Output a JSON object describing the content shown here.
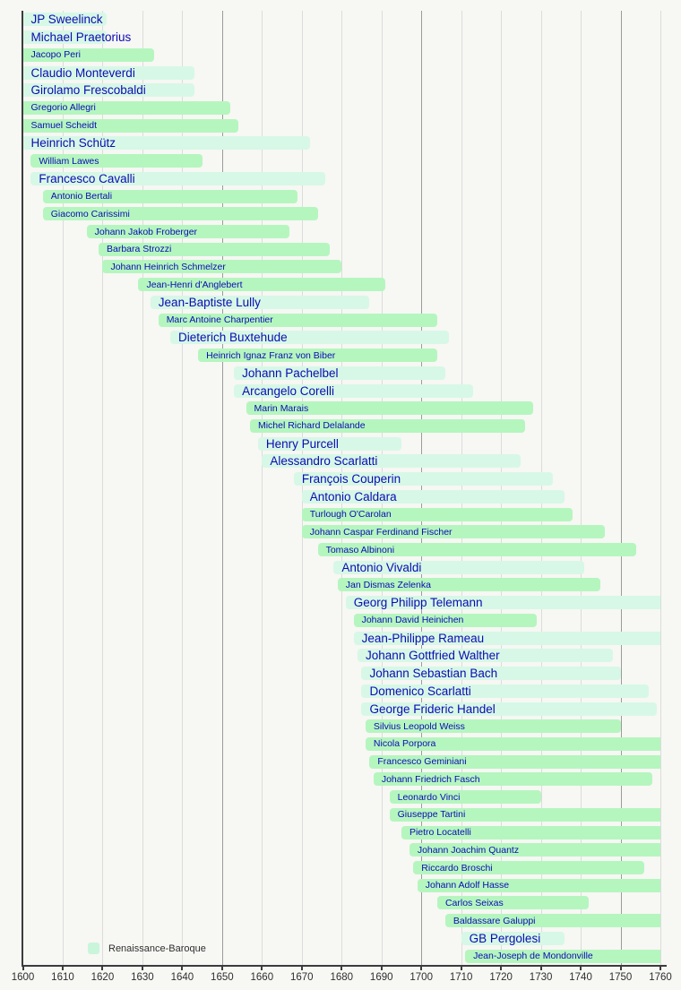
{
  "colors": {
    "background": "#f7f7f4",
    "bar_major": "#d7f8e6",
    "bar_minor": "#b5f6bf",
    "label_color": "#0b0bb4",
    "grid_minor": "#dcdcda",
    "grid_major": "#9b9b9b",
    "axis_color": "#3c3c3c",
    "tick_label_color": "#2e2e2e",
    "legend_text_color": "#2e2e2e",
    "legend_swatch_color": "#c9f5da"
  },
  "chart_data": {
    "type": "bar",
    "subtype": "gantt-lifespan-timeline",
    "title": "",
    "xlabel": "",
    "ylabel": "",
    "x_axis": {
      "min": 1600,
      "max": 1760,
      "tick_interval": 10,
      "ticks": [
        1600,
        1610,
        1620,
        1630,
        1640,
        1650,
        1660,
        1670,
        1680,
        1690,
        1700,
        1710,
        1720,
        1730,
        1740,
        1750,
        1760
      ],
      "major_gridlines": [
        1650,
        1700,
        1750
      ]
    },
    "legend": {
      "label": "Renaissance-Baroque",
      "position": "bottom-left"
    },
    "composers": [
      {
        "name": "JP Sweelinck",
        "start": 1600,
        "end": 1621,
        "emphasis": "major",
        "clip": "left"
      },
      {
        "name": "Michael Praetorius",
        "start": 1600,
        "end": 1621,
        "emphasis": "major",
        "clip": "left"
      },
      {
        "name": "Jacopo Peri",
        "start": 1600,
        "end": 1633,
        "emphasis": "minor",
        "clip": "left"
      },
      {
        "name": "Claudio Monteverdi",
        "start": 1600,
        "end": 1643,
        "emphasis": "major",
        "clip": "left"
      },
      {
        "name": "Girolamo Frescobaldi",
        "start": 1600,
        "end": 1643,
        "emphasis": "major",
        "clip": "left"
      },
      {
        "name": "Gregorio Allegri",
        "start": 1600,
        "end": 1652,
        "emphasis": "minor",
        "clip": "left"
      },
      {
        "name": "Samuel Scheidt",
        "start": 1600,
        "end": 1654,
        "emphasis": "minor",
        "clip": "left"
      },
      {
        "name": "Heinrich Schütz",
        "start": 1600,
        "end": 1672,
        "emphasis": "major",
        "clip": "left"
      },
      {
        "name": "William Lawes",
        "start": 1602,
        "end": 1645,
        "emphasis": "minor",
        "clip": "none"
      },
      {
        "name": "Francesco Cavalli",
        "start": 1602,
        "end": 1676,
        "emphasis": "major",
        "clip": "none"
      },
      {
        "name": "Antonio Bertali",
        "start": 1605,
        "end": 1669,
        "emphasis": "minor",
        "clip": "none"
      },
      {
        "name": "Giacomo Carissimi",
        "start": 1605,
        "end": 1674,
        "emphasis": "minor",
        "clip": "none"
      },
      {
        "name": "Johann Jakob Froberger",
        "start": 1616,
        "end": 1667,
        "emphasis": "minor",
        "clip": "none"
      },
      {
        "name": "Barbara Strozzi",
        "start": 1619,
        "end": 1677,
        "emphasis": "minor",
        "clip": "none"
      },
      {
        "name": "Johann Heinrich Schmelzer",
        "start": 1620,
        "end": 1680,
        "emphasis": "minor",
        "clip": "none"
      },
      {
        "name": "Jean-Henri d'Anglebert",
        "start": 1629,
        "end": 1691,
        "emphasis": "minor",
        "clip": "none"
      },
      {
        "name": "Jean-Baptiste Lully",
        "start": 1632,
        "end": 1687,
        "emphasis": "major",
        "clip": "none"
      },
      {
        "name": "Marc Antoine Charpentier",
        "start": 1634,
        "end": 1704,
        "emphasis": "minor",
        "clip": "none"
      },
      {
        "name": "Dieterich Buxtehude",
        "start": 1637,
        "end": 1707,
        "emphasis": "major",
        "clip": "none"
      },
      {
        "name": "Heinrich Ignaz Franz von Biber",
        "start": 1644,
        "end": 1704,
        "emphasis": "minor",
        "clip": "none"
      },
      {
        "name": "Johann Pachelbel",
        "start": 1653,
        "end": 1706,
        "emphasis": "major",
        "clip": "none"
      },
      {
        "name": "Arcangelo Corelli",
        "start": 1653,
        "end": 1713,
        "emphasis": "major",
        "clip": "none"
      },
      {
        "name": "Marin Marais",
        "start": 1656,
        "end": 1728,
        "emphasis": "minor",
        "clip": "none"
      },
      {
        "name": "Michel Richard Delalande",
        "start": 1657,
        "end": 1726,
        "emphasis": "minor",
        "clip": "none"
      },
      {
        "name": "Henry Purcell",
        "start": 1659,
        "end": 1695,
        "emphasis": "major",
        "clip": "none"
      },
      {
        "name": "Alessandro Scarlatti",
        "start": 1660,
        "end": 1725,
        "emphasis": "major",
        "clip": "none"
      },
      {
        "name": "François Couperin",
        "start": 1668,
        "end": 1733,
        "emphasis": "major",
        "clip": "none"
      },
      {
        "name": "Antonio Caldara",
        "start": 1670,
        "end": 1736,
        "emphasis": "major",
        "clip": "none"
      },
      {
        "name": "Turlough O'Carolan",
        "start": 1670,
        "end": 1738,
        "emphasis": "minor",
        "clip": "none"
      },
      {
        "name": "Johann Caspar Ferdinand Fischer",
        "start": 1670,
        "end": 1746,
        "emphasis": "minor",
        "clip": "none"
      },
      {
        "name": "Tomaso Albinoni",
        "start": 1674,
        "end": 1754,
        "emphasis": "minor",
        "clip": "none"
      },
      {
        "name": "Antonio Vivaldi",
        "start": 1678,
        "end": 1741,
        "emphasis": "major",
        "clip": "none"
      },
      {
        "name": "Jan Dismas Zelenka",
        "start": 1679,
        "end": 1745,
        "emphasis": "minor",
        "clip": "none"
      },
      {
        "name": "Georg Philipp Telemann",
        "start": 1681,
        "end": 1760,
        "emphasis": "major",
        "clip": "right"
      },
      {
        "name": "Johann David Heinichen",
        "start": 1683,
        "end": 1729,
        "emphasis": "minor",
        "clip": "none"
      },
      {
        "name": "Jean-Philippe Rameau",
        "start": 1683,
        "end": 1760,
        "emphasis": "major",
        "clip": "right"
      },
      {
        "name": "Johann Gottfried Walther",
        "start": 1684,
        "end": 1748,
        "emphasis": "major",
        "clip": "none"
      },
      {
        "name": "Johann Sebastian Bach",
        "start": 1685,
        "end": 1750,
        "emphasis": "major",
        "clip": "none"
      },
      {
        "name": "Domenico Scarlatti",
        "start": 1685,
        "end": 1757,
        "emphasis": "major",
        "clip": "none"
      },
      {
        "name": "George Frideric Handel",
        "start": 1685,
        "end": 1759,
        "emphasis": "major",
        "clip": "none"
      },
      {
        "name": "Silvius Leopold Weiss",
        "start": 1686,
        "end": 1750,
        "emphasis": "minor",
        "clip": "none"
      },
      {
        "name": "Nicola Porpora",
        "start": 1686,
        "end": 1760,
        "emphasis": "minor",
        "clip": "right"
      },
      {
        "name": "Francesco Geminiani",
        "start": 1687,
        "end": 1760,
        "emphasis": "minor",
        "clip": "right"
      },
      {
        "name": "Johann Friedrich Fasch",
        "start": 1688,
        "end": 1758,
        "emphasis": "minor",
        "clip": "none"
      },
      {
        "name": "Leonardo Vinci",
        "start": 1692,
        "end": 1730,
        "emphasis": "minor",
        "clip": "none"
      },
      {
        "name": "Giuseppe Tartini",
        "start": 1692,
        "end": 1760,
        "emphasis": "minor",
        "clip": "right"
      },
      {
        "name": "Pietro Locatelli",
        "start": 1695,
        "end": 1760,
        "emphasis": "minor",
        "clip": "right"
      },
      {
        "name": "Johann Joachim Quantz",
        "start": 1697,
        "end": 1760,
        "emphasis": "minor",
        "clip": "right"
      },
      {
        "name": "Riccardo Broschi",
        "start": 1698,
        "end": 1756,
        "emphasis": "minor",
        "clip": "none"
      },
      {
        "name": "Johann Adolf Hasse",
        "start": 1699,
        "end": 1760,
        "emphasis": "minor",
        "clip": "right"
      },
      {
        "name": "Carlos Seixas",
        "start": 1704,
        "end": 1742,
        "emphasis": "minor",
        "clip": "none"
      },
      {
        "name": "Baldassare Galuppi",
        "start": 1706,
        "end": 1760,
        "emphasis": "minor",
        "clip": "right"
      },
      {
        "name": "GB Pergolesi",
        "start": 1710,
        "end": 1736,
        "emphasis": "major",
        "clip": "none"
      },
      {
        "name": "Jean-Joseph de Mondonville",
        "start": 1711,
        "end": 1760,
        "emphasis": "minor",
        "clip": "right"
      }
    ]
  }
}
